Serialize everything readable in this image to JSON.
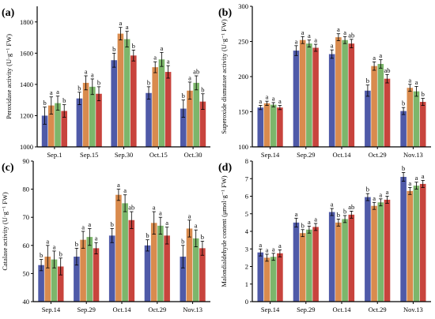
{
  "colors": {
    "series": [
      "#4f5aa8",
      "#d98b4e",
      "#7cb66b",
      "#c8443d"
    ],
    "axis": "#000000",
    "error_bar": "#000000"
  },
  "chart_data": [
    {
      "id": "a",
      "panel_label": "(a)",
      "type": "bar",
      "ylabel": "Peroxidase activity  (U·g⁻¹ FW)",
      "xlabel": "",
      "ylim": [
        1000,
        1900
      ],
      "yticks": [
        1000,
        1200,
        1400,
        1600,
        1800
      ],
      "grid": false,
      "legend": "none",
      "categories": [
        "Sep.1",
        "Sep.15",
        "Sep.30",
        "Oct.15",
        "Oct.30"
      ],
      "series": [
        {
          "values": [
            1200,
            1310,
            1555,
            1345,
            1245
          ],
          "errors": [
            55,
            40,
            45,
            40,
            55
          ],
          "letters": [
            "b",
            "b",
            "b",
            "b",
            "b"
          ]
        },
        {
          "values": [
            1265,
            1410,
            1725,
            1510,
            1360
          ],
          "errors": [
            55,
            45,
            40,
            35,
            55
          ],
          "letters": [
            "a",
            "a",
            "a",
            "a",
            "a"
          ]
        },
        {
          "values": [
            1280,
            1385,
            1690,
            1560,
            1410
          ],
          "errors": [
            45,
            50,
            50,
            45,
            45
          ],
          "letters": [
            "a",
            "a",
            "a",
            "a",
            "ab"
          ]
        },
        {
          "values": [
            1230,
            1340,
            1585,
            1480,
            1290
          ],
          "errors": [
            40,
            45,
            35,
            40,
            50
          ],
          "letters": [
            "b",
            "b",
            "b",
            "a",
            "b"
          ]
        }
      ]
    },
    {
      "id": "b",
      "panel_label": "(b)",
      "type": "bar",
      "ylabel": "Superoxide dismutase activity  (U·g⁻¹ FW)",
      "xlabel": "",
      "ylim": [
        100,
        300
      ],
      "yticks": [
        100,
        150,
        200,
        250,
        300
      ],
      "grid": false,
      "legend": "none",
      "categories": [
        "Sep.14",
        "Sep.29",
        "Oct.14",
        "Oct.29",
        "Nov.13"
      ],
      "series": [
        {
          "values": [
            156,
            237,
            232,
            180,
            151
          ],
          "errors": [
            3,
            7,
            6,
            8,
            5
          ],
          "letters": [
            "a",
            "a",
            "a",
            "b",
            "b"
          ]
        },
        {
          "values": [
            162,
            252,
            256,
            215,
            184
          ],
          "errors": [
            3,
            5,
            5,
            6,
            5
          ],
          "letters": [
            "a",
            "a",
            "a",
            "a",
            "a"
          ]
        },
        {
          "values": [
            160,
            247,
            252,
            218,
            179
          ],
          "errors": [
            3,
            5,
            5,
            6,
            7
          ],
          "letters": [
            "a",
            "a",
            "a",
            "a",
            "a"
          ]
        },
        {
          "values": [
            156,
            241,
            247,
            197,
            164
          ],
          "errors": [
            3,
            5,
            6,
            6,
            5
          ],
          "letters": [
            "a",
            "a",
            "ab",
            "ab",
            "b"
          ]
        }
      ]
    },
    {
      "id": "c",
      "panel_label": "(c)",
      "type": "bar",
      "ylabel": "Catalase activity  (U·g⁻¹ FW)",
      "xlabel": "",
      "ylim": [
        40,
        90
      ],
      "yticks": [
        40,
        50,
        60,
        70,
        80,
        90
      ],
      "grid": false,
      "legend": "none",
      "categories": [
        "Sep.14",
        "Sep.29",
        "Oct.14",
        "Oct.29",
        "Nov.13"
      ],
      "series": [
        {
          "values": [
            53,
            56,
            63.5,
            60,
            56
          ],
          "errors": [
            2,
            3,
            2.5,
            2,
            4
          ],
          "letters": [
            "b",
            "b",
            "b",
            "b",
            "b"
          ]
        },
        {
          "values": [
            56,
            62,
            78,
            68,
            66
          ],
          "errors": [
            4,
            3,
            2,
            4,
            3
          ],
          "letters": [
            "a",
            "a",
            "a",
            "a",
            "a"
          ]
        },
        {
          "values": [
            55,
            63,
            75,
            67,
            62.5
          ],
          "errors": [
            3,
            3,
            3,
            3,
            3
          ],
          "letters": [
            "a",
            "a",
            "a",
            "a",
            "a"
          ]
        },
        {
          "values": [
            52.5,
            59,
            69,
            63.5,
            59
          ],
          "errors": [
            3,
            2,
            3,
            3,
            2.5
          ],
          "letters": [
            "b",
            "a",
            "ab",
            "a",
            "b"
          ]
        }
      ]
    },
    {
      "id": "d",
      "panel_label": "(d)",
      "type": "bar",
      "ylabel": "Malondialdehyde content (μmol·g⁻¹ FW)",
      "xlabel": "",
      "ylim": [
        0,
        8
      ],
      "yticks": [
        0,
        1,
        2,
        3,
        4,
        5,
        6,
        7,
        8
      ],
      "grid": false,
      "legend": "none",
      "categories": [
        "Sep.14",
        "Sep.29",
        "Oct.14",
        "Oct.29",
        "Nov.13"
      ],
      "series": [
        {
          "values": [
            2.8,
            4.5,
            5.1,
            5.95,
            7.1
          ],
          "errors": [
            0.2,
            0.25,
            0.2,
            0.2,
            0.25
          ],
          "letters": [
            "a",
            "a",
            "a",
            "b",
            "b"
          ]
        },
        {
          "values": [
            2.5,
            3.9,
            4.5,
            5.45,
            6.3
          ],
          "errors": [
            0.2,
            0.2,
            0.2,
            0.2,
            0.2
          ],
          "letters": [
            "a",
            "b",
            "b",
            "a",
            "a"
          ]
        },
        {
          "values": [
            2.55,
            4.1,
            4.7,
            5.65,
            6.6
          ],
          "errors": [
            0.2,
            0.2,
            0.2,
            0.2,
            0.2
          ],
          "letters": [
            "a",
            "a",
            "b",
            "a",
            "a"
          ]
        },
        {
          "values": [
            2.75,
            4.25,
            4.95,
            5.8,
            6.7
          ],
          "errors": [
            0.2,
            0.2,
            0.2,
            0.2,
            0.2
          ],
          "letters": [
            "a",
            "a",
            "ab",
            "a",
            "a"
          ]
        }
      ]
    }
  ]
}
